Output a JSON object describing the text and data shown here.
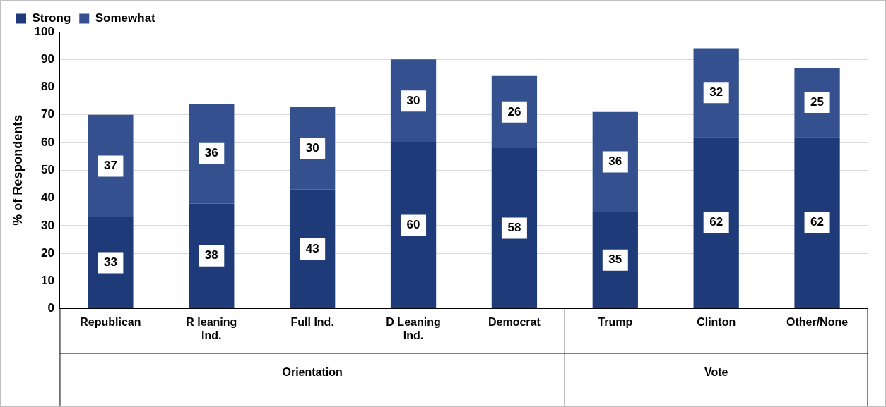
{
  "chart_data": {
    "type": "bar",
    "stacked": true,
    "ylabel": "% of Respondents",
    "categories": [
      "Republican",
      "R leaning Ind.",
      "Full Ind.",
      "D Leaning Ind.",
      "Democrat",
      "Trump",
      "Clinton",
      "Other/None"
    ],
    "series": [
      {
        "name": "Strong",
        "color": "#1f3a78",
        "values": [
          33,
          38,
          43,
          60,
          58,
          35,
          62,
          62
        ]
      },
      {
        "name": "Somewhat",
        "color": "#34508f",
        "values": [
          37,
          36,
          30,
          30,
          26,
          36,
          32,
          25
        ]
      }
    ],
    "ylim": [
      0,
      100
    ],
    "yticks": [
      0,
      10,
      20,
      30,
      40,
      50,
      60,
      70,
      80,
      90,
      100
    ],
    "grid": "y",
    "legend": "top left",
    "data_labels": true,
    "annotations": [
      "Orientation",
      "Vote"
    ]
  }
}
